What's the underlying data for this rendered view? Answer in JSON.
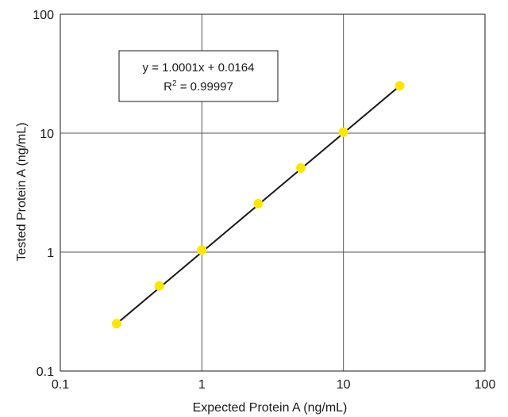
{
  "chart_data": {
    "type": "scatter",
    "title": "",
    "xlabel": "Expected Protein A (ng/mL)",
    "ylabel": "Tested Protein A (ng/mL)",
    "xscale": "log",
    "yscale": "log",
    "xlim": [
      0.1,
      100
    ],
    "ylim": [
      0.1,
      100
    ],
    "x_ticks": [
      "0.1",
      "1",
      "10",
      "100"
    ],
    "y_ticks": [
      "0.1",
      "1",
      "10",
      "100"
    ],
    "grid": true,
    "marker_color": "#ffe600",
    "line_color": "#1a1a1a",
    "points": [
      {
        "x": 0.25,
        "y": 0.25
      },
      {
        "x": 0.5,
        "y": 0.52
      },
      {
        "x": 1,
        "y": 1.04
      },
      {
        "x": 2.5,
        "y": 2.55
      },
      {
        "x": 5,
        "y": 5.1
      },
      {
        "x": 10,
        "y": 10.2
      },
      {
        "x": 25,
        "y": 25
      }
    ],
    "fit_line": {
      "x": [
        0.25,
        25
      ],
      "y": [
        0.25,
        25
      ]
    },
    "annotation": {
      "equation": "y = 1.0001x + 0.0164",
      "r2_prefix": "R",
      "r2_sup": "2",
      "r2_value": " = 0.99997"
    }
  }
}
